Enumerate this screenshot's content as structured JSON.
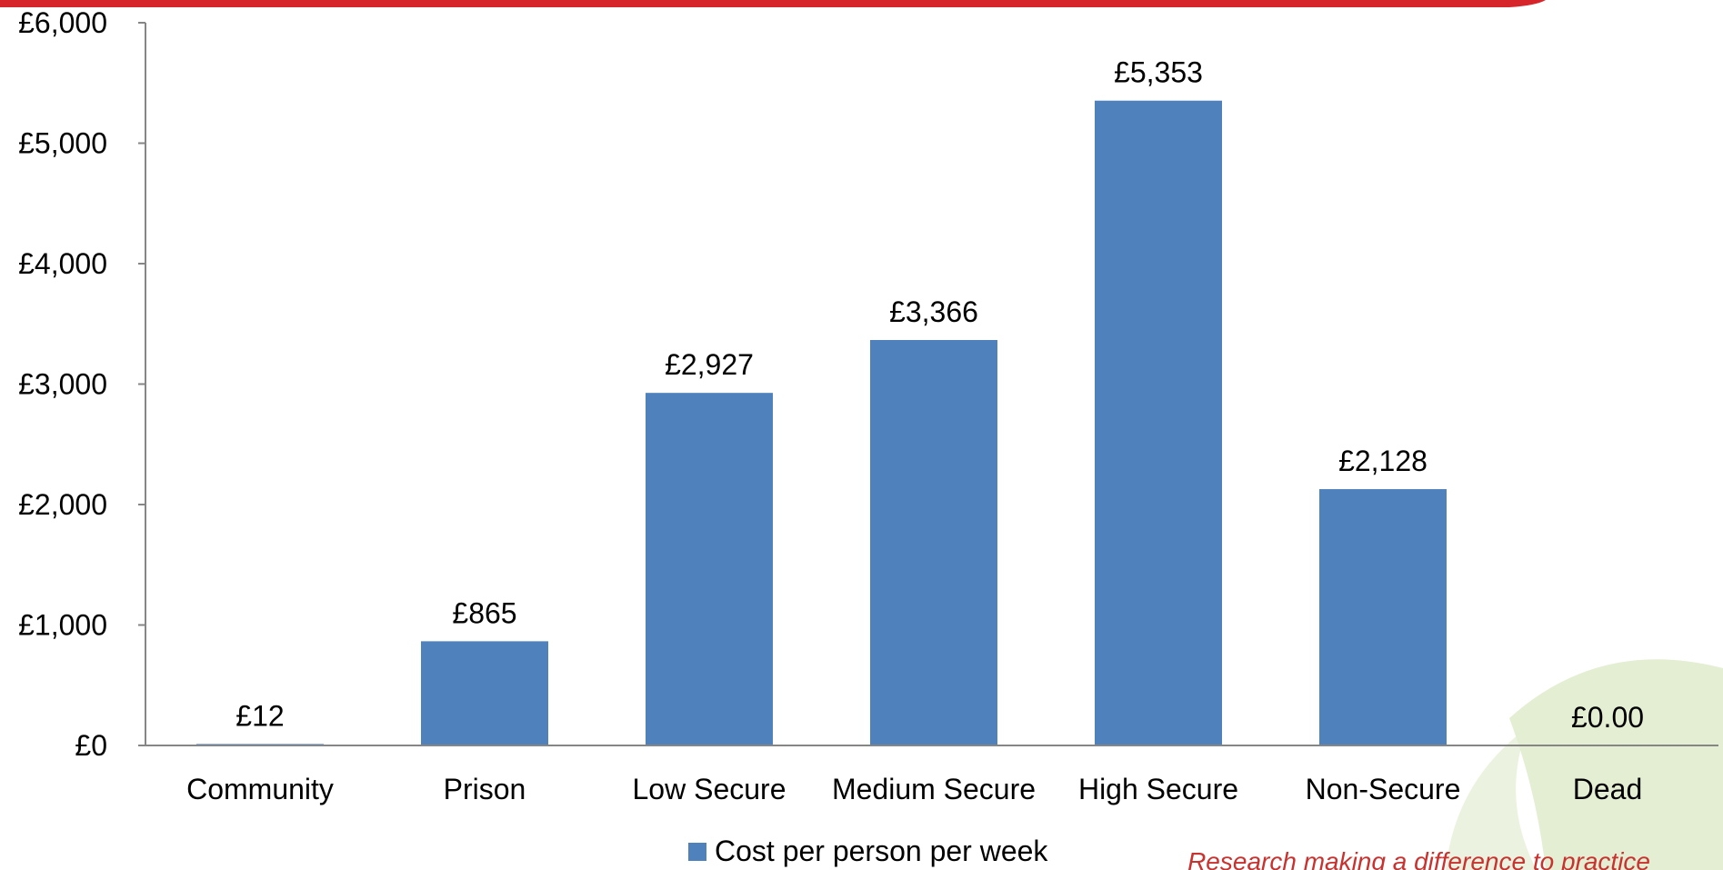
{
  "colors": {
    "bar": "#4f81bd",
    "axis": "#868686",
    "header_red": "#d7262b",
    "tagline": "#c8322f",
    "leaf_green": "#e3eed3"
  },
  "footer": {
    "tagline": "Research making a difference to practice"
  },
  "chart_data": {
    "type": "bar",
    "title": "",
    "xlabel": "",
    "ylabel": "",
    "categories": [
      "Community",
      "Prison",
      "Low Secure",
      "Medium Secure",
      "High Secure",
      "Non-Secure",
      "Dead"
    ],
    "series": [
      {
        "name": "Cost per person per week",
        "values": [
          12,
          865,
          2927,
          3366,
          5353,
          2128,
          0
        ],
        "data_labels": [
          "£12",
          "£865",
          "£2,927",
          "£3,366",
          "£5,353",
          "£2,128",
          "£0.00"
        ]
      }
    ],
    "ylim": [
      0,
      6000
    ],
    "yticks": [
      0,
      1000,
      2000,
      3000,
      4000,
      5000,
      6000
    ],
    "ytick_labels": [
      "£0",
      "£1,000",
      "£2,000",
      "£3,000",
      "£4,000",
      "£5,000",
      "£6,000"
    ],
    "grid": false,
    "legend_position": "bottom-center"
  }
}
